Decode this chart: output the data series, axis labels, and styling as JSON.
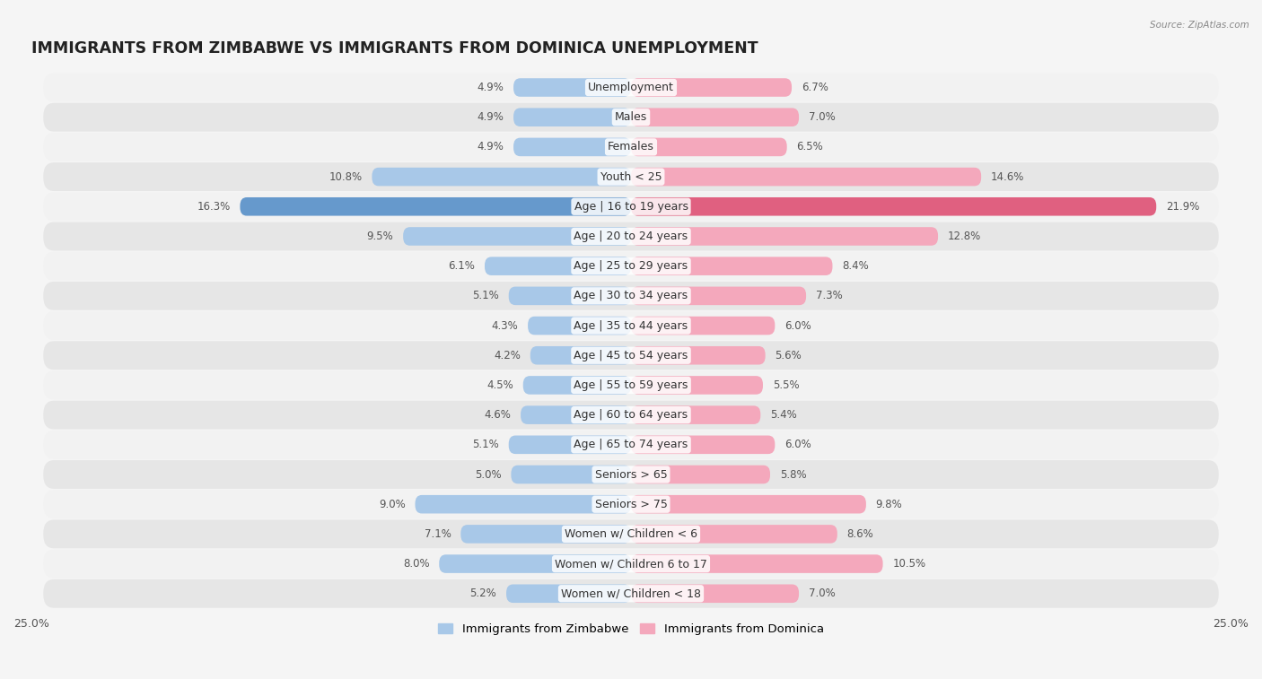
{
  "title": "IMMIGRANTS FROM ZIMBABWE VS IMMIGRANTS FROM DOMINICA UNEMPLOYMENT",
  "source": "Source: ZipAtlas.com",
  "categories": [
    "Unemployment",
    "Males",
    "Females",
    "Youth < 25",
    "Age | 16 to 19 years",
    "Age | 20 to 24 years",
    "Age | 25 to 29 years",
    "Age | 30 to 34 years",
    "Age | 35 to 44 years",
    "Age | 45 to 54 years",
    "Age | 55 to 59 years",
    "Age | 60 to 64 years",
    "Age | 65 to 74 years",
    "Seniors > 65",
    "Seniors > 75",
    "Women w/ Children < 6",
    "Women w/ Children 6 to 17",
    "Women w/ Children < 18"
  ],
  "zimbabwe_values": [
    4.9,
    4.9,
    4.9,
    10.8,
    16.3,
    9.5,
    6.1,
    5.1,
    4.3,
    4.2,
    4.5,
    4.6,
    5.1,
    5.0,
    9.0,
    7.1,
    8.0,
    5.2
  ],
  "dominica_values": [
    6.7,
    7.0,
    6.5,
    14.6,
    21.9,
    12.8,
    8.4,
    7.3,
    6.0,
    5.6,
    5.5,
    5.4,
    6.0,
    5.8,
    9.8,
    8.6,
    10.5,
    7.0
  ],
  "zimbabwe_color": "#a8c8e8",
  "dominica_color": "#f4a8bc",
  "highlight_zimbabwe_color": "#6699cc",
  "highlight_dominica_color": "#e06080",
  "row_bg_odd": "#f0f0f0",
  "row_bg_even": "#e0e0e0",
  "fig_bg": "#f5f5f5",
  "xlim": 25.0,
  "legend_zimbabwe": "Immigrants from Zimbabwe",
  "legend_dominica": "Immigrants from Dominica",
  "bar_height": 0.62,
  "title_fontsize": 12.5,
  "label_fontsize": 9,
  "value_fontsize": 8.5,
  "axis_label_fontsize": 9,
  "highlight_row": 4
}
